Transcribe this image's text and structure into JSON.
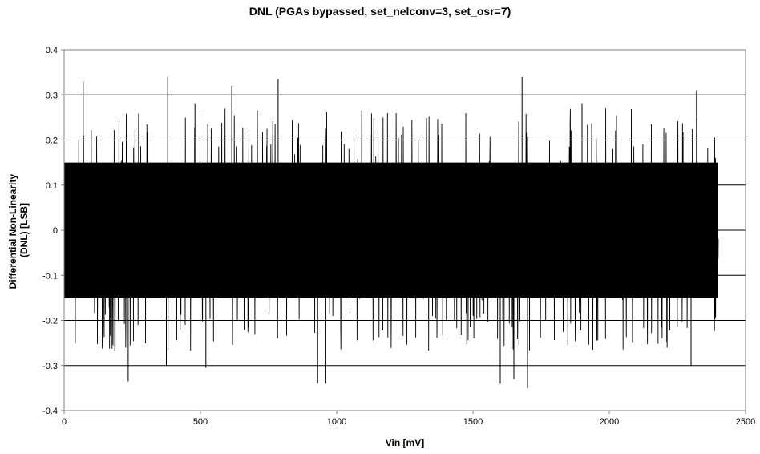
{
  "chart_data": {
    "type": "line",
    "title": "DNL (PGAs bypassed, set_nelconv=3, set_osr=7)",
    "xlabel": "Vin [mV]",
    "ylabel": "Differential Non-Linearity (DNL) [LSB]",
    "ylabel_lines": [
      "Differential Non-Linearity",
      "(DNL) [LSB]"
    ],
    "xlim": [
      0,
      2500
    ],
    "ylim": [
      -0.4,
      0.4
    ],
    "x_ticks": [
      "0",
      "500",
      "1000",
      "1500",
      "2000",
      "2500"
    ],
    "y_ticks": [
      "0.4",
      "0.3",
      "0.2",
      "0.1",
      "0",
      "-0.1",
      "-0.2",
      "-0.3",
      "-0.4"
    ],
    "grid": "horizontal",
    "legend": "none",
    "series": [
      {
        "color": "#000000",
        "x_range": [
          0,
          2400
        ],
        "typical_band": [
          -0.15,
          0.15
        ],
        "peaks": [
          {
            "x": 70,
            "y": 0.33
          },
          {
            "x": 380,
            "y": 0.34
          },
          {
            "x": 615,
            "y": 0.32
          },
          {
            "x": 785,
            "y": 0.335
          },
          {
            "x": 1680,
            "y": 0.34
          },
          {
            "x": 2320,
            "y": 0.31
          },
          {
            "x": 480,
            "y": 0.28
          },
          {
            "x": 1900,
            "y": 0.28
          },
          {
            "x": 235,
            "y": -0.335
          },
          {
            "x": 375,
            "y": -0.3
          },
          {
            "x": 520,
            "y": -0.305
          },
          {
            "x": 930,
            "y": -0.34
          },
          {
            "x": 960,
            "y": -0.34
          },
          {
            "x": 1600,
            "y": -0.34
          },
          {
            "x": 1650,
            "y": -0.33
          },
          {
            "x": 1700,
            "y": -0.35
          },
          {
            "x": 2300,
            "y": -0.3
          }
        ]
      }
    ]
  }
}
